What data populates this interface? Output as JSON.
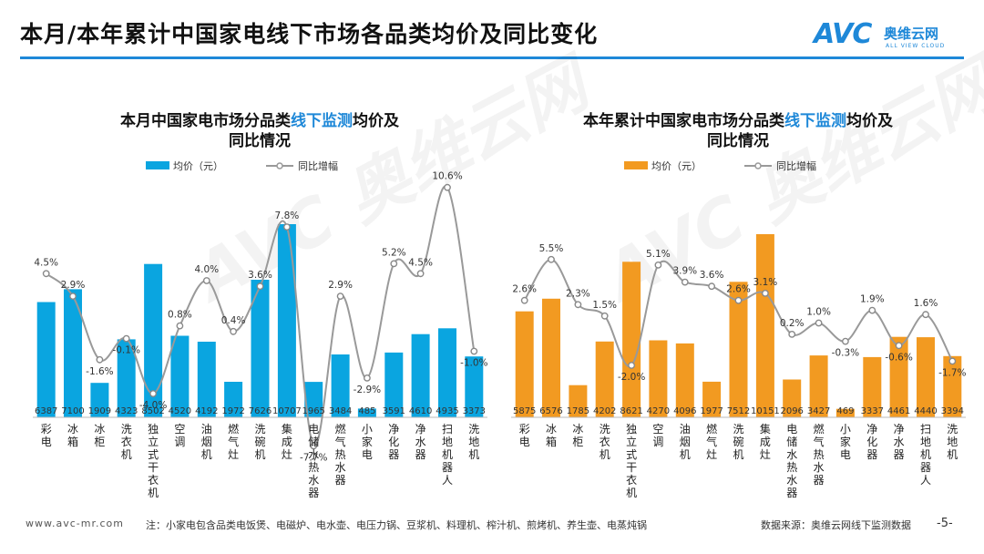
{
  "page": {
    "title": "本月/本年累计中国家电线下市场各品类均价及同比变化",
    "logo_text": "AVC",
    "logo_cn": "奥维云网",
    "logo_en": "ALL VIEW CLOUD",
    "watermark": "AVC 奥维云网",
    "footer_url": "www.avc-mr.com",
    "footer_note": "注：小家电包含品类电饭煲、电磁炉、电水壶、电压力锅、豆浆机、料理机、榨汁机、煎烤机、养生壶、电蒸炖锅",
    "footer_source": "数据来源：奥维云网线下监测数据",
    "page_number": "-5-"
  },
  "colors": {
    "accent": "#1e88d8",
    "blue_bar": "#0aa5e0",
    "orange_bar": "#f29a21",
    "line": "#999999"
  },
  "chart_data": [
    {
      "type": "bar+line",
      "title_parts": [
        "本月中国家电市场分品类",
        "线下监测",
        "均价及",
        "同比情况"
      ],
      "legend": [
        "均价（元）",
        "同比增幅"
      ],
      "categories": [
        "彩电",
        "冰箱",
        "冰柜",
        "洗衣机",
        "独立式干衣机",
        "空调",
        "油烟机",
        "燃气灶",
        "洗碗机",
        "集成灶",
        "电储水热水器",
        "燃气热水器",
        "小家电",
        "净化器",
        "净水器",
        "扫地机器人",
        "洗地机"
      ],
      "category_labels": [
        "彩电",
        "冰箱",
        "冰柜",
        "洗衣机",
        "独立式干衣机",
        "空调",
        "油烟机",
        "燃气灶",
        "洗碗机",
        "集成灶",
        "电储水热水器",
        "燃气热水器",
        "小家电",
        "净化器",
        "净水器",
        "扫地机器人",
        "洗地机"
      ],
      "series": [
        {
          "name": "均价（元）",
          "type": "bar",
          "values": [
            6387,
            7100,
            1909,
            4323,
            8502,
            4520,
            4192,
            1972,
            7626,
            10707,
            1965,
            3484,
            485,
            3591,
            4610,
            4935,
            3373
          ]
        },
        {
          "name": "同比增幅",
          "type": "line",
          "values": [
            4.5,
            2.9,
            -1.6,
            -0.1,
            -4.0,
            0.8,
            4.0,
            0.4,
            3.6,
            7.8,
            -7.7,
            2.9,
            -2.9,
            5.2,
            4.5,
            10.6,
            -1.0
          ]
        }
      ],
      "value_labels": [
        "6387",
        "7100",
        "1909",
        "4323",
        "8502",
        "4520",
        "4192",
        "1972",
        "7626",
        "10707",
        "1965",
        "3484",
        "485",
        "3591",
        "4610",
        "4935",
        "3373"
      ],
      "pct_labels": [
        "4.5%",
        "2.9%",
        "-1.6%",
        "-0.1%",
        "-4.0%",
        "0.8%",
        "4.0%",
        "0.4%",
        "3.6%",
        "7.8%",
        "-7.7%",
        "2.9%",
        "-2.9%",
        "5.2%",
        "4.5%",
        "10.6%",
        "-1.0%"
      ]
    },
    {
      "type": "bar+line",
      "title_parts": [
        "本年累计中国家电市场分品类",
        "线下监测",
        "均价及",
        "同比情况"
      ],
      "legend": [
        "均价（元）",
        "同比增幅"
      ],
      "categories": [
        "彩电",
        "冰箱",
        "冰柜",
        "洗衣机",
        "独立式干衣机",
        "空调",
        "油烟机",
        "燃气灶",
        "洗碗机",
        "集成灶",
        "电储水热水器",
        "燃气热水器",
        "小家电",
        "净化器",
        "净水器",
        "扫地机器人",
        "洗地机"
      ],
      "category_labels": [
        "彩电",
        "冰箱",
        "冰柜",
        "洗衣机",
        "独立式干衣机",
        "空调",
        "油烟机",
        "燃气灶",
        "洗碗机",
        "集成灶",
        "电储水热水器",
        "燃气热水器",
        "小家电",
        "净化器",
        "净水器",
        "扫地机器人",
        "洗地机"
      ],
      "series": [
        {
          "name": "均价（元）",
          "type": "bar",
          "values": [
            5875,
            6576,
            1785,
            4202,
            8621,
            4270,
            4096,
            1977,
            7512,
            10151,
            2096,
            3427,
            469,
            3337,
            4461,
            4440,
            3394
          ]
        },
        {
          "name": "同比增幅",
          "type": "line",
          "values": [
            2.6,
            5.5,
            2.3,
            1.5,
            -2.0,
            5.1,
            3.9,
            3.6,
            2.6,
            3.1,
            0.2,
            1.0,
            -0.3,
            1.9,
            -0.6,
            1.6,
            -1.7
          ]
        }
      ],
      "value_labels": [
        "5875",
        "6576",
        "1785",
        "4202",
        "8621",
        "4270",
        "4096",
        "1977",
        "7512",
        "10151",
        "2096",
        "3427",
        "469",
        "3337",
        "4461",
        "4440",
        "3394"
      ],
      "pct_labels": [
        "2.6%",
        "5.5%",
        "2.3%",
        "1.5%",
        "-2.0%",
        "5.1%",
        "3.9%",
        "3.6%",
        "2.6%",
        "3.1%",
        "0.2%",
        "1.0%",
        "-0.3%",
        "1.9%",
        "-0.6%",
        "1.6%",
        "-1.7%"
      ]
    }
  ]
}
